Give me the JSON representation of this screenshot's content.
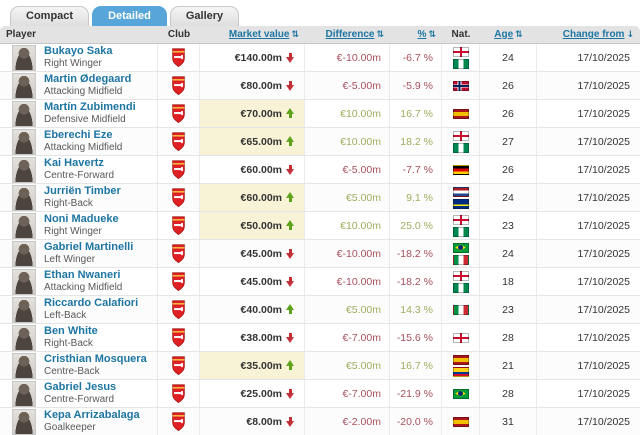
{
  "tabs": [
    {
      "label": "Compact",
      "active": false
    },
    {
      "label": "Detailed",
      "active": true
    },
    {
      "label": "Gallery",
      "active": false
    }
  ],
  "columns": {
    "player": "Player",
    "club": "Club",
    "market_value": "Market value",
    "difference": "Difference",
    "percent": "%",
    "nat": "Nat.",
    "age": "Age",
    "change_from": "Change from"
  },
  "icons": {
    "sort_both": "⇅",
    "sort_down": "↓",
    "club_crest": "arsenal-crest"
  },
  "colors": {
    "accent_tab": "#57a5d9",
    "link_blue": "#1d75a3",
    "positive_text": "#9fae5e",
    "negative_text": "#a8505c",
    "arrow_up": "#5ea31c",
    "arrow_down": "#c22f38",
    "value_highlight": "#f8f3d6",
    "header_bg": "#e3e3e3"
  },
  "club": "Arsenal FC",
  "rows": [
    {
      "name": "Bukayo Saka",
      "position": "Right Winger",
      "value": "€140.00m",
      "trend": "down",
      "diff": "€-10.00m",
      "pct": "-6.7 %",
      "nations": [
        "England",
        "Nigeria"
      ],
      "age": "24",
      "date": "17/10/2025",
      "highlight": false
    },
    {
      "name": "Martin Ødegaard",
      "position": "Attacking Midfield",
      "value": "€80.00m",
      "trend": "down",
      "diff": "€-5.00m",
      "pct": "-5.9 %",
      "nations": [
        "Norway"
      ],
      "age": "26",
      "date": "17/10/2025",
      "highlight": false
    },
    {
      "name": "Martín Zubimendi",
      "position": "Defensive Midfield",
      "value": "€70.00m",
      "trend": "up",
      "diff": "€10.00m",
      "pct": "16.7 %",
      "nations": [
        "Spain"
      ],
      "age": "26",
      "date": "17/10/2025",
      "highlight": true
    },
    {
      "name": "Eberechi Eze",
      "position": "Attacking Midfield",
      "value": "€65.00m",
      "trend": "up",
      "diff": "€10.00m",
      "pct": "18.2 %",
      "nations": [
        "England",
        "Nigeria"
      ],
      "age": "27",
      "date": "17/10/2025",
      "highlight": true
    },
    {
      "name": "Kai Havertz",
      "position": "Centre-Forward",
      "value": "€60.00m",
      "trend": "down",
      "diff": "€-5.00m",
      "pct": "-7.7 %",
      "nations": [
        "Germany"
      ],
      "age": "26",
      "date": "17/10/2025",
      "highlight": false
    },
    {
      "name": "Jurriën Timber",
      "position": "Right-Back",
      "value": "€60.00m",
      "trend": "up",
      "diff": "€5.00m",
      "pct": "9.1 %",
      "nations": [
        "Netherlands",
        "Curacao"
      ],
      "age": "24",
      "date": "17/10/2025",
      "highlight": true
    },
    {
      "name": "Noni Madueke",
      "position": "Right Winger",
      "value": "€50.00m",
      "trend": "up",
      "diff": "€10.00m",
      "pct": "25.0 %",
      "nations": [
        "England",
        "Nigeria"
      ],
      "age": "23",
      "date": "17/10/2025",
      "highlight": true
    },
    {
      "name": "Gabriel Martinelli",
      "position": "Left Winger",
      "value": "€45.00m",
      "trend": "down",
      "diff": "€-10.00m",
      "pct": "-18.2 %",
      "nations": [
        "Brazil",
        "Italy"
      ],
      "age": "24",
      "date": "17/10/2025",
      "highlight": false
    },
    {
      "name": "Ethan Nwaneri",
      "position": "Attacking Midfield",
      "value": "€45.00m",
      "trend": "down",
      "diff": "€-10.00m",
      "pct": "-18.2 %",
      "nations": [
        "England",
        "Nigeria"
      ],
      "age": "18",
      "date": "17/10/2025",
      "highlight": false
    },
    {
      "name": "Riccardo Calafiori",
      "position": "Left-Back",
      "value": "€40.00m",
      "trend": "up",
      "diff": "€5.00m",
      "pct": "14.3 %",
      "nations": [
        "Italy"
      ],
      "age": "23",
      "date": "17/10/2025",
      "highlight": false
    },
    {
      "name": "Ben White",
      "position": "Right-Back",
      "value": "€38.00m",
      "trend": "down",
      "diff": "€-7.00m",
      "pct": "-15.6 %",
      "nations": [
        "England"
      ],
      "age": "28",
      "date": "17/10/2025",
      "highlight": false
    },
    {
      "name": "Cristhian Mosquera",
      "position": "Centre-Back",
      "value": "€35.00m",
      "trend": "up",
      "diff": "€5.00m",
      "pct": "16.7 %",
      "nations": [
        "Spain",
        "Colombia"
      ],
      "age": "21",
      "date": "17/10/2025",
      "highlight": true
    },
    {
      "name": "Gabriel Jesus",
      "position": "Centre-Forward",
      "value": "€25.00m",
      "trend": "down",
      "diff": "€-7.00m",
      "pct": "-21.9 %",
      "nations": [
        "Brazil"
      ],
      "age": "28",
      "date": "17/10/2025",
      "highlight": false
    },
    {
      "name": "Kepa Arrizabalaga",
      "position": "Goalkeeper",
      "value": "€8.00m",
      "trend": "down",
      "diff": "€-2.00m",
      "pct": "-20.0 %",
      "nations": [
        "Spain"
      ],
      "age": "31",
      "date": "17/10/2025",
      "highlight": false
    }
  ]
}
